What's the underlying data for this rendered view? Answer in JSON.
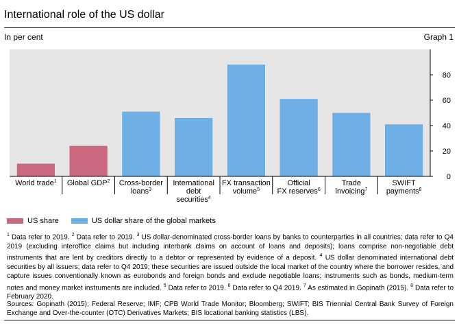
{
  "header": {
    "title": "International role of the US dollar",
    "subtitle": "In per cent",
    "graph_number": "Graph 1"
  },
  "colors": {
    "us_share": "#c9687f",
    "us_dollar_share": "#6eb0e6",
    "plot_background": "#e6e6e6"
  },
  "legend": {
    "us_share": "US share",
    "us_dollar_share": "US dollar share of the global markets"
  },
  "chart_data": {
    "type": "bar",
    "categories": [
      {
        "lines": [
          "World trade"
        ],
        "sup": "1"
      },
      {
        "lines": [
          "Global GDP"
        ],
        "sup": "2"
      },
      {
        "lines": [
          "Cross-border",
          "loans"
        ],
        "sup": "3"
      },
      {
        "lines": [
          "International",
          "debt",
          "securities"
        ],
        "sup": "4"
      },
      {
        "lines": [
          "FX transaction",
          "volume"
        ],
        "sup": "5"
      },
      {
        "lines": [
          "Official",
          "FX reserves"
        ],
        "sup": "6"
      },
      {
        "lines": [
          "Trade",
          "invoicing"
        ],
        "sup": "7"
      },
      {
        "lines": [
          "SWIFT",
          "payments"
        ],
        "sup": "8"
      }
    ],
    "series": [
      {
        "name": "US share",
        "values": [
          10,
          24,
          null,
          null,
          null,
          null,
          null,
          null
        ]
      },
      {
        "name": "US dollar share of the global markets",
        "values": [
          null,
          null,
          51,
          46,
          88,
          61,
          50,
          41
        ]
      }
    ],
    "yticks": [
      0,
      20,
      40,
      60,
      80
    ],
    "ylim": [
      0,
      100
    ],
    "y_axis_side": "right",
    "grid": false,
    "legend_position": "bottom-left"
  },
  "notes": {
    "text": "<sup>1</sup> Data refer to 2019. <sup>2</sup> Data refer to 2019. <sup>3</sup> US dollar-denominated cross-border loans by banks to counterparties in all countries; data refer to Q4 2019 (excluding interoffice claims but including interbank claims on account of loans and deposits); loans comprise non-negotiable debt instruments that are lent by creditors directly to a debtor or represented by evidence of a deposit. <sup>4</sup> US dollar denominated international debt securities by all issuers; data refer to Q4 2019; these securities are issued outside the local market of the country where the borrower resides, and capture issues conventionally known as eurobonds and foreign bonds and exclude negotiable loans; instruments such as bonds, medium-term notes and money market instruments are included. <sup>5</sup> Data refer to 2019. <sup>6</sup> Data refer to Q4 2019. <sup>7</sup> As estimated in Gopinath (2015). <sup>8</sup> Data refer to February 2020."
  },
  "sources": {
    "text": "Sources: Gopinath (2015); Federal Reserve; IMF; CPB World Trade Monitor; Bloomberg; SWIFT; BIS Triennial Central Bank Survey of Foreign Exchange and Over-the-counter (OTC) Derivatives Markets; BIS locational banking statistics (LBS)."
  }
}
